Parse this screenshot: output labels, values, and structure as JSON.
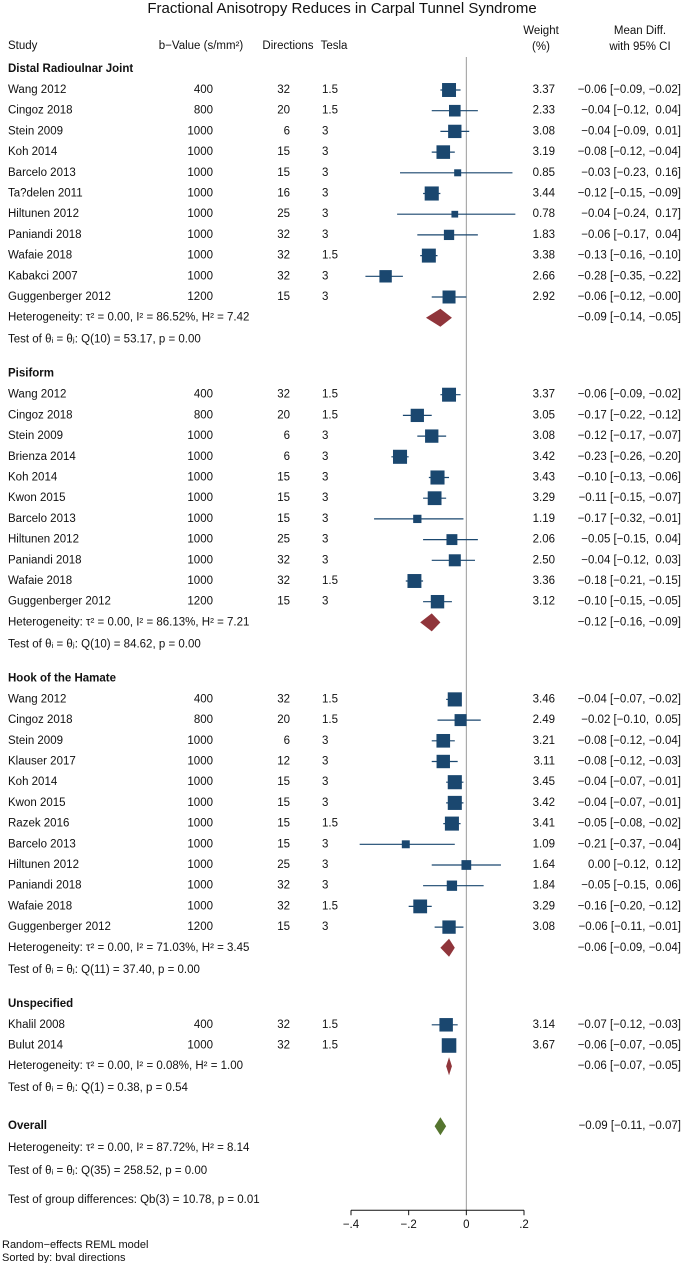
{
  "chart_data": {
    "type": "forest",
    "title": "Fractional Anisotropy Reduces in Carpal Tunnel Syndrome",
    "headers": {
      "study": "Study",
      "b_value": "b−Value (s/mm²)",
      "directions": "Directions",
      "tesla": "Tesla",
      "weight": [
        "Weight",
        "(%)"
      ],
      "effect": [
        "Mean Diff.",
        "with 95% CI"
      ]
    },
    "study_color": "#1a476f",
    "subgroup_color": "#90353b",
    "overall_color": "#55752f",
    "ref_line": 0,
    "xlim": [
      -0.4,
      0.2
    ],
    "xticks": [
      {
        "value": -0.4,
        "label": "−.4"
      },
      {
        "value": -0.2,
        "label": "−.2"
      },
      0,
      {
        "value": 0.2,
        "label": ".2"
      }
    ],
    "groups": [
      {
        "name": "Distal Radioulnar Joint",
        "studies": [
          "Wang 2012",
          "Cingoz 2018",
          "Stein 2009",
          "Koh 2014",
          "Barcelo 2013",
          "Ta?delen 2011",
          "Hiltunen 2012",
          "Paniandi 2018",
          "Wafaie 2018",
          "Kabakci 2007",
          "Guggenberger 2012"
        ],
        "b_values": [
          400,
          800,
          1000,
          1000,
          1000,
          1000,
          1000,
          1000,
          1000,
          1000,
          1200
        ],
        "directions": [
          32,
          20,
          6,
          15,
          15,
          16,
          25,
          32,
          32,
          32,
          15
        ],
        "tesla": [
          1.5,
          1.5,
          3,
          3,
          3,
          3,
          3,
          3,
          1.5,
          3,
          3
        ],
        "weights": [
          3.37,
          2.33,
          3.08,
          3.19,
          0.85,
          3.44,
          0.78,
          1.83,
          3.38,
          2.66,
          2.92
        ],
        "weight_labels": [
          "3.37",
          "2.33",
          "3.08",
          "3.19",
          "0.85",
          "3.44",
          "0.78",
          "1.83",
          "3.38",
          "2.66",
          "2.92"
        ],
        "values": [
          -0.06,
          -0.04,
          -0.04,
          -0.08,
          -0.03,
          -0.12,
          -0.04,
          -0.06,
          -0.13,
          -0.28,
          -0.06
        ],
        "ci_low": [
          -0.09,
          -0.12,
          -0.09,
          -0.12,
          -0.23,
          -0.15,
          -0.24,
          -0.17,
          -0.16,
          -0.35,
          -0.12
        ],
        "ci_high": [
          -0.02,
          0.04,
          0.01,
          -0.04,
          0.16,
          -0.09,
          0.17,
          0.04,
          -0.1,
          -0.22,
          0
        ],
        "value_labels": [
          "−0.06 [−0.09, −0.02]",
          "−0.04 [−0.12,  0.04]",
          "−0.04 [−0.09,  0.01]",
          "−0.08 [−0.12, −0.04]",
          "−0.03 [−0.23,  0.16]",
          "−0.12 [−0.15, −0.09]",
          "−0.04 [−0.24,  0.17]",
          "−0.06 [−0.17,  0.04]",
          "−0.13 [−0.16, −0.10]",
          "−0.28 [−0.35, −0.22]",
          "−0.06 [−0.12, −0.00]"
        ],
        "heterogeneity": "Heterogeneity: τ² = 0.00, I² = 86.52%, H² = 7.42",
        "test": "Test of θᵢ = θⱼ: Q(10) = 53.17, p = 0.00",
        "pooled": {
          "value": -0.09,
          "ci_low": -0.14,
          "ci_high": -0.05,
          "value_label": "−0.09 [−0.14, −0.05]"
        }
      },
      {
        "name": "Pisiform",
        "studies": [
          "Wang 2012",
          "Cingoz 2018",
          "Stein 2009",
          "Brienza 2014",
          "Koh 2014",
          "Kwon 2015",
          "Barcelo 2013",
          "Hiltunen 2012",
          "Paniandi 2018",
          "Wafaie 2018",
          "Guggenberger 2012"
        ],
        "b_values": [
          400,
          800,
          1000,
          1000,
          1000,
          1000,
          1000,
          1000,
          1000,
          1000,
          1200
        ],
        "directions": [
          32,
          20,
          6,
          6,
          15,
          15,
          15,
          25,
          32,
          32,
          15
        ],
        "tesla": [
          1.5,
          1.5,
          3,
          3,
          3,
          3,
          3,
          3,
          3,
          1.5,
          3
        ],
        "weights": [
          3.37,
          3.05,
          3.08,
          3.42,
          3.43,
          3.29,
          1.19,
          2.06,
          2.5,
          3.36,
          3.12
        ],
        "weight_labels": [
          "3.37",
          "3.05",
          "3.08",
          "3.42",
          "3.43",
          "3.29",
          "1.19",
          "2.06",
          "2.50",
          "3.36",
          "3.12"
        ],
        "values": [
          -0.06,
          -0.17,
          -0.12,
          -0.23,
          -0.1,
          -0.11,
          -0.17,
          -0.05,
          -0.04,
          -0.18,
          -0.1
        ],
        "ci_low": [
          -0.09,
          -0.22,
          -0.17,
          -0.26,
          -0.13,
          -0.15,
          -0.32,
          -0.15,
          -0.12,
          -0.21,
          -0.15
        ],
        "ci_high": [
          -0.02,
          -0.12,
          -0.07,
          -0.2,
          -0.06,
          -0.07,
          -0.01,
          0.04,
          0.03,
          -0.15,
          -0.05
        ],
        "value_labels": [
          "−0.06 [−0.09, −0.02]",
          "−0.17 [−0.22, −0.12]",
          "−0.12 [−0.17, −0.07]",
          "−0.23 [−0.26, −0.20]",
          "−0.10 [−0.13, −0.06]",
          "−0.11 [−0.15, −0.07]",
          "−0.17 [−0.32, −0.01]",
          "−0.05 [−0.15,  0.04]",
          "−0.04 [−0.12,  0.03]",
          "−0.18 [−0.21, −0.15]",
          "−0.10 [−0.15, −0.05]"
        ],
        "heterogeneity": "Heterogeneity: τ² = 0.00, I² = 86.13%, H² = 7.21",
        "test": "Test of θᵢ = θⱼ: Q(10) = 84.62, p = 0.00",
        "pooled": {
          "value": -0.12,
          "ci_low": -0.16,
          "ci_high": -0.09,
          "value_label": "−0.12 [−0.16, −0.09]"
        }
      },
      {
        "name": "Hook of the Hamate",
        "studies": [
          "Wang 2012",
          "Cingoz 2018",
          "Stein 2009",
          "Klauser 2017",
          "Koh 2014",
          "Kwon 2015",
          "Razek 2016",
          "Barcelo 2013",
          "Hiltunen 2012",
          "Paniandi 2018",
          "Wafaie 2018",
          "Guggenberger 2012"
        ],
        "b_values": [
          400,
          800,
          1000,
          1000,
          1000,
          1000,
          1000,
          1000,
          1000,
          1000,
          1000,
          1200
        ],
        "directions": [
          32,
          20,
          6,
          12,
          15,
          15,
          15,
          15,
          25,
          32,
          32,
          15
        ],
        "tesla": [
          1.5,
          1.5,
          3,
          3,
          3,
          3,
          1.5,
          3,
          3,
          3,
          1.5,
          3
        ],
        "weights": [
          3.46,
          2.49,
          3.21,
          3.11,
          3.45,
          3.42,
          3.41,
          1.09,
          1.64,
          1.84,
          3.29,
          3.08
        ],
        "weight_labels": [
          "3.46",
          "2.49",
          "3.21",
          "3.11",
          "3.45",
          "3.42",
          "3.41",
          "1.09",
          "1.64",
          "1.84",
          "3.29",
          "3.08"
        ],
        "values": [
          -0.04,
          -0.02,
          -0.08,
          -0.08,
          -0.04,
          -0.04,
          -0.05,
          -0.21,
          0,
          -0.05,
          -0.16,
          -0.06
        ],
        "ci_low": [
          -0.07,
          -0.1,
          -0.12,
          -0.12,
          -0.07,
          -0.07,
          -0.08,
          -0.37,
          -0.12,
          -0.15,
          -0.2,
          -0.11
        ],
        "ci_high": [
          -0.02,
          0.05,
          -0.04,
          -0.03,
          -0.01,
          -0.01,
          -0.02,
          -0.04,
          0.12,
          0.06,
          -0.12,
          -0.01
        ],
        "value_labels": [
          "−0.04 [−0.07, −0.02]",
          "−0.02 [−0.10,  0.05]",
          "−0.08 [−0.12, −0.04]",
          "−0.08 [−0.12, −0.03]",
          "−0.04 [−0.07, −0.01]",
          "−0.04 [−0.07, −0.01]",
          "−0.05 [−0.08, −0.02]",
          "−0.21 [−0.37, −0.04]",
          " 0.00 [−0.12,  0.12]",
          "−0.05 [−0.15,  0.06]",
          "−0.16 [−0.20, −0.12]",
          "−0.06 [−0.11, −0.01]"
        ],
        "heterogeneity": "Heterogeneity: τ² = 0.00, I² = 71.03%, H² = 3.45",
        "test": "Test of θᵢ = θⱼ: Q(11) = 37.40, p = 0.00",
        "pooled": {
          "value": -0.06,
          "ci_low": -0.09,
          "ci_high": -0.04,
          "value_label": "−0.06 [−0.09, −0.04]"
        }
      },
      {
        "name": "Unspecified",
        "studies": [
          "Khalil 2008",
          "Bulut 2014"
        ],
        "b_values": [
          400,
          1000
        ],
        "directions": [
          32,
          32
        ],
        "tesla": [
          1.5,
          1.5
        ],
        "weights": [
          3.14,
          3.67
        ],
        "weight_labels": [
          "3.14",
          "3.67"
        ],
        "values": [
          -0.07,
          -0.06
        ],
        "ci_low": [
          -0.12,
          -0.07
        ],
        "ci_high": [
          -0.03,
          -0.05
        ],
        "value_labels": [
          "−0.07 [−0.12, −0.03]",
          "−0.06 [−0.07, −0.05]"
        ],
        "heterogeneity": "Heterogeneity: τ² = 0.00, I² = 0.08%, H² = 1.00",
        "test": "Test of θᵢ = θⱼ: Q(1) = 0.38, p = 0.54",
        "pooled": {
          "value": -0.06,
          "ci_low": -0.07,
          "ci_high": -0.05,
          "value_label": "−0.06 [−0.07, −0.05]"
        }
      }
    ],
    "overall": {
      "name": "Overall",
      "heterogeneity": "Heterogeneity: τ² = 0.00, I² = 87.72%, H² = 8.14",
      "test": "Test of θᵢ = θⱼ: Q(35) = 258.52, p = 0.00",
      "pooled": {
        "value": -0.09,
        "ci_low": -0.11,
        "ci_high": -0.07,
        "value_label": "−0.09 [−0.11, −0.07]"
      }
    },
    "group_test": "Test of group differences: Qb(3) = 10.78, p = 0.01",
    "footnotes": [
      "Random−effects REML model",
      "Sorted by: bval directions"
    ]
  }
}
